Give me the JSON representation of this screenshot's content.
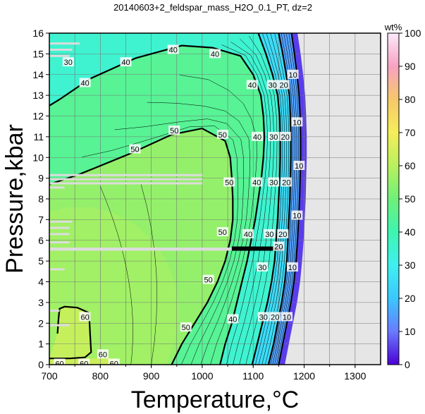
{
  "chart_data": {
    "type": "heatmap",
    "title": "20140603+2_feldspar_mass_H2O_0.1_PT, dz=2",
    "xlabel": "Temperature,°C",
    "ylabel": "Pressure,kbar",
    "xlim": [
      700,
      1350
    ],
    "ylim": [
      0,
      16
    ],
    "xticks": [
      700,
      800,
      900,
      1000,
      1100,
      1200,
      1300
    ],
    "yticks": [
      0,
      1,
      2,
      3,
      4,
      5,
      6,
      7,
      8,
      9,
      10,
      11,
      12,
      13,
      14,
      15,
      16
    ],
    "grid": true,
    "colorbar": {
      "unit": "wt%",
      "range": [
        0,
        100
      ],
      "ticks": [
        0,
        10,
        20,
        30,
        40,
        50,
        60,
        70,
        80,
        90,
        100
      ]
    },
    "no_data_region": "T > ~1160-1200 °C (grey)",
    "bold_contours": [
      {
        "level": 60,
        "points": [
          [
            700,
            0.3
          ],
          [
            740,
            0.3
          ],
          [
            770,
            0.35
          ],
          [
            782,
            0.6
          ],
          [
            780,
            1.5
          ],
          [
            778,
            2.5
          ],
          [
            755,
            2.75
          ],
          [
            730,
            2.8
          ],
          [
            720,
            2.7
          ],
          [
            718,
            2.2
          ],
          [
            716,
            1.5
          ]
        ]
      },
      {
        "level": 50,
        "points": [
          [
            940,
            0
          ],
          [
            960,
            1
          ],
          [
            985,
            2
          ],
          [
            1010,
            3
          ],
          [
            1030,
            4
          ],
          [
            1045,
            5
          ],
          [
            1055,
            6
          ],
          [
            1060,
            7
          ],
          [
            1060,
            8
          ],
          [
            1058,
            9
          ],
          [
            1055,
            10
          ],
          [
            1045,
            10.8
          ],
          [
            1000,
            11.4
          ],
          [
            940,
            11.1
          ],
          [
            860,
            10.2
          ],
          [
            760,
            9.2
          ],
          [
            700,
            8.7
          ]
        ]
      },
      {
        "level": 40,
        "points": [
          [
            1035,
            0
          ],
          [
            1045,
            1
          ],
          [
            1058,
            2
          ],
          [
            1068,
            3
          ],
          [
            1078,
            4
          ],
          [
            1088,
            5
          ],
          [
            1096,
            6
          ],
          [
            1104,
            7
          ],
          [
            1110,
            8
          ],
          [
            1116,
            9
          ],
          [
            1120,
            10
          ],
          [
            1122,
            11
          ],
          [
            1120,
            12
          ],
          [
            1115,
            13
          ],
          [
            1100,
            14
          ],
          [
            1075,
            14.9
          ],
          [
            1020,
            15.3
          ],
          [
            960,
            15.4
          ],
          [
            870,
            14.8
          ],
          [
            780,
            13.8
          ],
          [
            720,
            12.8
          ],
          [
            700,
            12.5
          ]
        ]
      },
      {
        "level": 30,
        "points": [
          [
            1098,
            0
          ],
          [
            1108,
            1
          ],
          [
            1118,
            2
          ],
          [
            1128,
            3
          ],
          [
            1136,
            4
          ],
          [
            1142,
            5
          ],
          [
            1145,
            6
          ],
          [
            1148,
            7
          ],
          [
            1150,
            8
          ],
          [
            1152,
            9
          ],
          [
            1153,
            10
          ],
          [
            1153,
            11
          ],
          [
            1152,
            12
          ],
          [
            1148,
            13
          ],
          [
            1138,
            14
          ],
          [
            1125,
            15
          ],
          [
            1110,
            16
          ]
        ]
      },
      {
        "level": 20,
        "points": [
          [
            1130,
            0
          ],
          [
            1140,
            1
          ],
          [
            1148,
            2
          ],
          [
            1156,
            3
          ],
          [
            1162,
            4
          ],
          [
            1166,
            5
          ],
          [
            1168,
            6
          ],
          [
            1170,
            7
          ],
          [
            1172,
            8
          ],
          [
            1173,
            9
          ],
          [
            1174,
            10
          ],
          [
            1174,
            11
          ],
          [
            1173,
            12
          ],
          [
            1171,
            13
          ],
          [
            1165,
            14
          ],
          [
            1158,
            15
          ],
          [
            1150,
            16
          ]
        ]
      },
      {
        "level": 10,
        "points": [
          [
            1150,
            0
          ],
          [
            1158,
            1
          ],
          [
            1166,
            2
          ],
          [
            1174,
            3
          ],
          [
            1180,
            4
          ],
          [
            1184,
            5
          ],
          [
            1187,
            6
          ],
          [
            1189,
            7
          ],
          [
            1191,
            8
          ],
          [
            1192,
            9
          ],
          [
            1193,
            10
          ],
          [
            1193,
            11
          ],
          [
            1192,
            12
          ],
          [
            1190,
            13
          ],
          [
            1186,
            14
          ],
          [
            1181,
            15
          ],
          [
            1175,
            16
          ]
        ]
      }
    ],
    "contour_labels": [
      {
        "text": "40",
        "x": 943,
        "y": 15.2
      },
      {
        "text": "40",
        "x": 1025,
        "y": 15.0
      },
      {
        "text": "40",
        "x": 850,
        "y": 14.6
      },
      {
        "text": "40",
        "x": 770,
        "y": 13.6
      },
      {
        "text": "30",
        "x": 737,
        "y": 14.6
      },
      {
        "text": "50",
        "x": 945,
        "y": 11.3
      },
      {
        "text": "50",
        "x": 1040,
        "y": 11.1
      },
      {
        "text": "50",
        "x": 868,
        "y": 10.4
      },
      {
        "text": "50",
        "x": 1053,
        "y": 8.8
      },
      {
        "text": "50",
        "x": 1040,
        "y": 6.4
      },
      {
        "text": "50",
        "x": 1012,
        "y": 4.1
      },
      {
        "text": "50",
        "x": 968,
        "y": 1.8
      },
      {
        "text": "60",
        "x": 770,
        "y": 2.3
      },
      {
        "text": "60",
        "x": 805,
        "y": 0.5
      },
      {
        "text": "60",
        "x": 827,
        "y": 0.05
      },
      {
        "text": "60",
        "x": 720,
        "y": 0.05
      },
      {
        "text": "60",
        "x": 768,
        "y": 0.05
      },
      {
        "text": "10",
        "x": 1178,
        "y": 14.0
      },
      {
        "text": "20",
        "x": 1160,
        "y": 13.5
      },
      {
        "text": "30",
        "x": 1138,
        "y": 13.5
      },
      {
        "text": "40",
        "x": 1098,
        "y": 13.5
      },
      {
        "text": "10",
        "x": 1186,
        "y": 11.7
      },
      {
        "text": "20",
        "x": 1163,
        "y": 11.0
      },
      {
        "text": "30",
        "x": 1140,
        "y": 11.0
      },
      {
        "text": "40",
        "x": 1108,
        "y": 11.0
      },
      {
        "text": "10",
        "x": 1190,
        "y": 9.6
      },
      {
        "text": "20",
        "x": 1165,
        "y": 8.8
      },
      {
        "text": "30",
        "x": 1140,
        "y": 8.8
      },
      {
        "text": "40",
        "x": 1107,
        "y": 8.8
      },
      {
        "text": "10",
        "x": 1186,
        "y": 7.2
      },
      {
        "text": "20",
        "x": 1158,
        "y": 6.3
      },
      {
        "text": "30",
        "x": 1132,
        "y": 6.3
      },
      {
        "text": "40",
        "x": 1090,
        "y": 6.3
      },
      {
        "text": "10",
        "x": 1177,
        "y": 4.7
      },
      {
        "text": "20",
        "x": 1150,
        "y": 5.7
      },
      {
        "text": "30",
        "x": 1118,
        "y": 4.7
      },
      {
        "text": "40",
        "x": 1060,
        "y": 2.2
      },
      {
        "text": "30",
        "x": 1120,
        "y": 2.3
      },
      {
        "text": "20",
        "x": 1143,
        "y": 2.3
      },
      {
        "text": "10",
        "x": 1166,
        "y": 2.3
      }
    ]
  }
}
